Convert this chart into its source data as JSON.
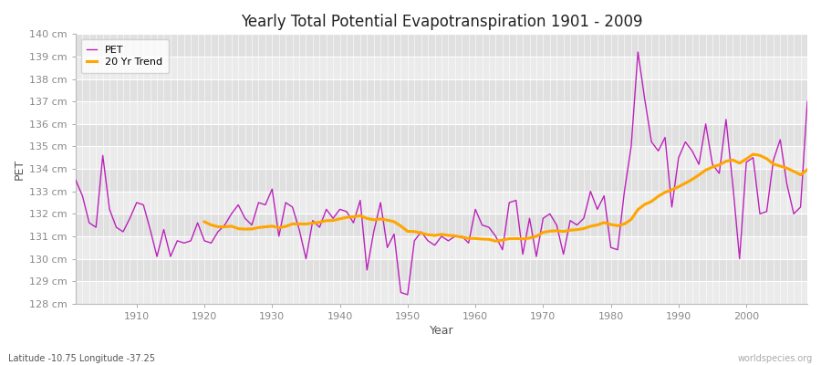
{
  "title": "Yearly Total Potential Evapotranspiration 1901 - 2009",
  "ylabel": "PET",
  "xlabel": "Year",
  "subtitle": "Latitude -10.75 Longitude -37.25",
  "watermark": "worldspecies.org",
  "pet_color": "#BB22BB",
  "trend_color": "#FFA500",
  "background_color": "#FFFFFF",
  "plot_bg_color_light": "#EBEBEB",
  "plot_bg_color_dark": "#E0E0E0",
  "grid_color": "#FFFFFF",
  "ylim": [
    128,
    140
  ],
  "xlim": [
    1901,
    2009
  ],
  "ytick_step": 1,
  "years": [
    1901,
    1902,
    1903,
    1904,
    1905,
    1906,
    1907,
    1908,
    1909,
    1910,
    1911,
    1912,
    1913,
    1914,
    1915,
    1916,
    1917,
    1918,
    1919,
    1920,
    1921,
    1922,
    1923,
    1924,
    1925,
    1926,
    1927,
    1928,
    1929,
    1930,
    1931,
    1932,
    1933,
    1934,
    1935,
    1936,
    1937,
    1938,
    1939,
    1940,
    1941,
    1942,
    1943,
    1944,
    1945,
    1946,
    1947,
    1948,
    1949,
    1950,
    1951,
    1952,
    1953,
    1954,
    1955,
    1956,
    1957,
    1958,
    1959,
    1960,
    1961,
    1962,
    1963,
    1964,
    1965,
    1966,
    1967,
    1968,
    1969,
    1970,
    1971,
    1972,
    1973,
    1974,
    1975,
    1976,
    1977,
    1978,
    1979,
    1980,
    1981,
    1982,
    1983,
    1984,
    1985,
    1986,
    1987,
    1988,
    1989,
    1990,
    1991,
    1992,
    1993,
    1994,
    1995,
    1996,
    1997,
    1998,
    1999,
    2000,
    2001,
    2002,
    2003,
    2004,
    2005,
    2006,
    2007,
    2008,
    2009
  ],
  "pet": [
    133.5,
    132.8,
    131.6,
    131.4,
    134.6,
    132.2,
    131.4,
    131.2,
    131.8,
    132.5,
    132.4,
    131.3,
    130.1,
    131.3,
    130.1,
    130.8,
    130.7,
    130.8,
    131.6,
    130.8,
    130.7,
    131.2,
    131.5,
    132.0,
    132.4,
    131.8,
    131.5,
    132.5,
    132.4,
    133.1,
    131.0,
    132.5,
    132.3,
    131.3,
    130.0,
    131.7,
    131.4,
    132.2,
    131.8,
    132.2,
    132.1,
    131.6,
    132.6,
    129.5,
    131.2,
    132.5,
    130.5,
    131.1,
    128.5,
    128.4,
    130.8,
    131.2,
    130.8,
    130.6,
    131.0,
    130.8,
    131.0,
    131.0,
    130.7,
    132.2,
    131.5,
    131.4,
    131.0,
    130.4,
    132.5,
    132.6,
    130.2,
    131.8,
    130.1,
    131.8,
    132.0,
    131.5,
    130.2,
    131.7,
    131.5,
    131.8,
    133.0,
    132.2,
    132.8,
    130.5,
    130.4,
    133.0,
    135.0,
    139.2,
    137.1,
    135.2,
    134.8,
    135.4,
    132.3,
    134.5,
    135.2,
    134.8,
    134.2,
    136.0,
    134.2,
    133.8,
    136.2,
    133.3,
    130.0,
    134.3,
    134.5,
    132.0,
    132.1,
    134.4,
    135.3,
    133.3,
    132.0,
    132.3,
    137.0
  ]
}
